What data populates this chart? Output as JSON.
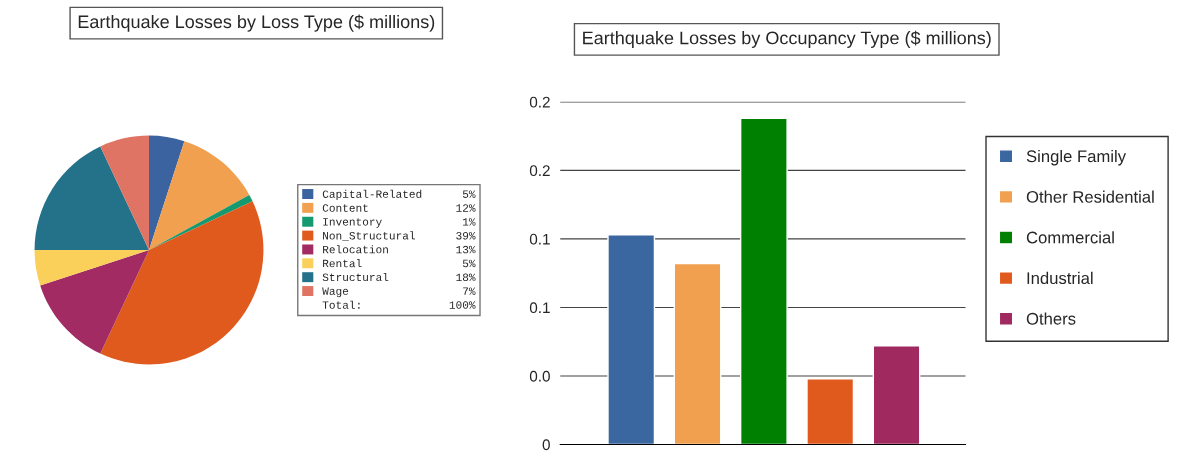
{
  "chart_data": [
    {
      "type": "pie",
      "title": "Earthquake Losses by Loss Type ($ millions)",
      "categories": [
        "Capital-Related",
        "Content",
        "Inventory",
        "Non_Structural",
        "Relocation",
        "Rental",
        "Structural",
        "Wage"
      ],
      "values": [
        5,
        12,
        1,
        39,
        13,
        5,
        18,
        7
      ],
      "colors": [
        "#3a63a0",
        "#f0a04e",
        "#149a6e",
        "#e05a1e",
        "#a12b62",
        "#fbd05a",
        "#24718a",
        "#e07464"
      ],
      "value_labels": [
        "5%",
        "12%",
        "1%",
        "39%",
        "13%",
        "5%",
        "18%",
        "7%"
      ],
      "annotations": [
        "Total:",
        "100%"
      ],
      "legend": "right"
    },
    {
      "type": "bar",
      "title": "Earthquake Losses by Occupancy Type ($ millions)",
      "categories": [
        null,
        null,
        null,
        null,
        null
      ],
      "series": [
        {
          "name": "Single Family",
          "color": "#3a67a0",
          "values": [
            0.153,
            null,
            null,
            null,
            null
          ]
        },
        {
          "name": "Other Residential",
          "color": "#f0a04e",
          "values": [
            null,
            0.132,
            null,
            null,
            null
          ]
        },
        {
          "name": "Commercial",
          "color": "#008000",
          "values": [
            null,
            null,
            0.238,
            null,
            null
          ]
        },
        {
          "name": "Industrial",
          "color": "#e05a1e",
          "values": [
            null,
            null,
            null,
            0.048,
            null
          ]
        },
        {
          "name": "Others",
          "color": "#a02a60",
          "values": [
            null,
            null,
            null,
            null,
            0.072
          ]
        }
      ],
      "ylim": [
        0,
        0.25
      ],
      "yticks": [
        {
          "value": 0,
          "label": "0"
        },
        {
          "value": 0.05,
          "label": "0.0"
        },
        {
          "value": 0.1,
          "label": "0.1"
        },
        {
          "value": 0.15,
          "label": "0.1"
        },
        {
          "value": 0.2,
          "label": "0.2"
        },
        {
          "value": 0.25,
          "label": "0.2"
        }
      ],
      "grid": "y",
      "legend": "right",
      "tick_labels": "y"
    }
  ]
}
